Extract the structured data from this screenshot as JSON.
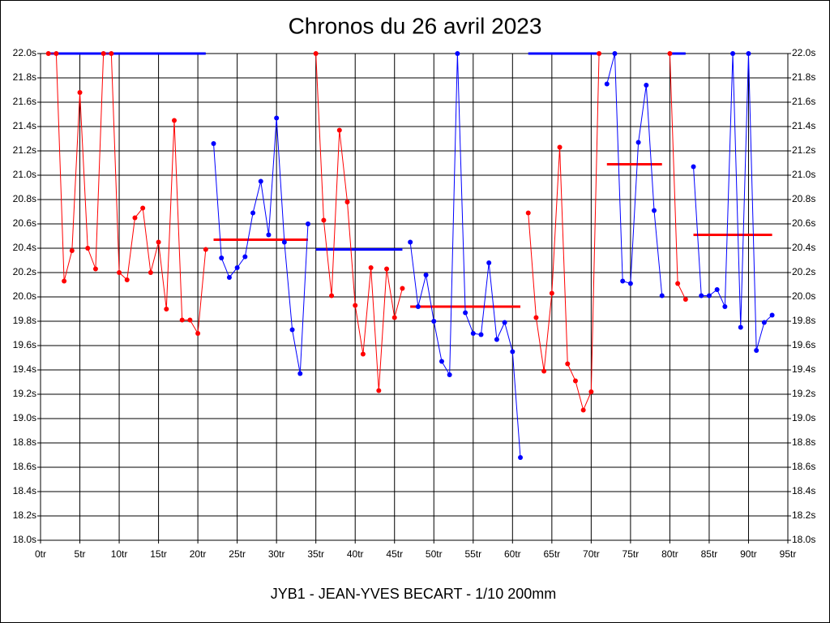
{
  "chart_data": {
    "type": "line",
    "title": "Chronos du 26 avril 2023",
    "x_label": "JYB1 - JEAN-YVES BECART - 1/10 200mm",
    "xlim": [
      0,
      95
    ],
    "ylim": [
      18.0,
      22.0
    ],
    "grid": true,
    "xticks": [
      {
        "value": 0,
        "label": "0tr"
      },
      {
        "value": 5,
        "label": "5tr"
      },
      {
        "value": 10,
        "label": "10tr"
      },
      {
        "value": 15,
        "label": "15tr"
      },
      {
        "value": 20,
        "label": "20tr"
      },
      {
        "value": 25,
        "label": "25tr"
      },
      {
        "value": 30,
        "label": "30tr"
      },
      {
        "value": 35,
        "label": "35tr"
      },
      {
        "value": 40,
        "label": "40tr"
      },
      {
        "value": 45,
        "label": "45tr"
      },
      {
        "value": 50,
        "label": "50tr"
      },
      {
        "value": 55,
        "label": "55tr"
      },
      {
        "value": 60,
        "label": "60tr"
      },
      {
        "value": 65,
        "label": "65tr"
      },
      {
        "value": 70,
        "label": "70tr"
      },
      {
        "value": 75,
        "label": "75tr"
      },
      {
        "value": 80,
        "label": "80tr"
      },
      {
        "value": 85,
        "label": "85tr"
      },
      {
        "value": 90,
        "label": "90tr"
      },
      {
        "value": 95,
        "label": "95tr"
      }
    ],
    "yticks": [
      {
        "value": 18.0,
        "label": "18.0s"
      },
      {
        "value": 18.2,
        "label": "18.2s"
      },
      {
        "value": 18.4,
        "label": "18.4s"
      },
      {
        "value": 18.6,
        "label": "18.6s"
      },
      {
        "value": 18.8,
        "label": "18.8s"
      },
      {
        "value": 19.0,
        "label": "19.0s"
      },
      {
        "value": 19.2,
        "label": "19.2s"
      },
      {
        "value": 19.4,
        "label": "19.4s"
      },
      {
        "value": 19.6,
        "label": "19.6s"
      },
      {
        "value": 19.8,
        "label": "19.8s"
      },
      {
        "value": 20.0,
        "label": "20.0s"
      },
      {
        "value": 20.2,
        "label": "20.2s"
      },
      {
        "value": 20.4,
        "label": "20.4s"
      },
      {
        "value": 20.6,
        "label": "20.6s"
      },
      {
        "value": 20.8,
        "label": "20.8s"
      },
      {
        "value": 21.0,
        "label": "21.0s"
      },
      {
        "value": 21.2,
        "label": "21.2s"
      },
      {
        "value": 21.4,
        "label": "21.4s"
      },
      {
        "value": 21.6,
        "label": "21.6s"
      },
      {
        "value": 21.8,
        "label": "21.8s"
      },
      {
        "value": 22.0,
        "label": "22.0s"
      }
    ],
    "series": [
      {
        "color": "#ff0000",
        "x": [
          1,
          2,
          3,
          4,
          5,
          6,
          7,
          8,
          9,
          10,
          11,
          12,
          13,
          14,
          15,
          16,
          17,
          18,
          19,
          20,
          21
        ],
        "values": [
          22.0,
          22.0,
          20.13,
          20.38,
          21.68,
          20.4,
          20.23,
          22.0,
          22.0,
          20.2,
          20.14,
          20.65,
          20.73,
          20.2,
          20.45,
          19.9,
          21.45,
          19.81,
          19.81,
          19.7,
          20.39
        ]
      },
      {
        "color": "#0000ff",
        "x": [
          22,
          23,
          24,
          25,
          26,
          27,
          28,
          29,
          30,
          31,
          32,
          33,
          34
        ],
        "values": [
          21.26,
          20.32,
          20.16,
          20.24,
          20.33,
          20.69,
          20.95,
          20.51,
          21.47,
          20.45,
          19.73,
          19.37,
          20.6
        ]
      },
      {
        "color": "#ff0000",
        "x": [
          35,
          36,
          37,
          38,
          39,
          40,
          41,
          42,
          43,
          44,
          45,
          46
        ],
        "values": [
          22.0,
          20.63,
          20.01,
          21.37,
          20.78,
          19.93,
          19.53,
          20.24,
          19.23,
          20.23,
          19.83,
          20.07
        ]
      },
      {
        "color": "#0000ff",
        "x": [
          47,
          48,
          49,
          50,
          51,
          52,
          53,
          54,
          55,
          56,
          57,
          58,
          59,
          60,
          61
        ],
        "values": [
          20.45,
          19.92,
          20.18,
          19.8,
          19.47,
          19.36,
          22.0,
          19.87,
          19.7,
          19.69,
          20.28,
          19.65,
          19.79,
          19.55,
          18.68
        ]
      },
      {
        "color": "#ff0000",
        "x": [
          62,
          63,
          64,
          65,
          66,
          67,
          68,
          69,
          70,
          71
        ],
        "values": [
          20.69,
          19.83,
          19.39,
          20.03,
          21.23,
          19.45,
          19.31,
          19.07,
          19.22,
          22.0
        ]
      },
      {
        "color": "#0000ff",
        "x": [
          72,
          73,
          74,
          75,
          76,
          77,
          78,
          79
        ],
        "values": [
          21.75,
          22.0,
          20.13,
          20.11,
          21.27,
          21.74,
          20.71,
          20.01
        ]
      },
      {
        "color": "#ff0000",
        "x": [
          80,
          81,
          82
        ],
        "values": [
          22.0,
          20.11,
          19.98
        ]
      },
      {
        "color": "#0000ff",
        "x": [
          83,
          84,
          85,
          86,
          87,
          88,
          89,
          90,
          91,
          92,
          93
        ],
        "values": [
          21.07,
          20.01,
          20.01,
          20.06,
          19.92,
          22.0,
          19.75,
          22.0,
          19.56,
          19.79,
          19.85
        ]
      }
    ],
    "averages": [
      {
        "color": "#0000ff",
        "x": [
          1,
          21
        ],
        "value": 22.0
      },
      {
        "color": "#ff0000",
        "x": [
          22,
          34
        ],
        "value": 20.47
      },
      {
        "color": "#0000ff",
        "x": [
          35,
          46
        ],
        "value": 20.39
      },
      {
        "color": "#ff0000",
        "x": [
          47,
          61
        ],
        "value": 19.92
      },
      {
        "color": "#0000ff",
        "x": [
          62,
          71
        ],
        "value": 22.0
      },
      {
        "color": "#ff0000",
        "x": [
          72,
          79
        ],
        "value": 21.09
      },
      {
        "color": "#0000ff",
        "x": [
          80,
          82
        ],
        "value": 22.0
      },
      {
        "color": "#ff0000",
        "x": [
          83,
          93
        ],
        "value": 20.51
      }
    ]
  }
}
